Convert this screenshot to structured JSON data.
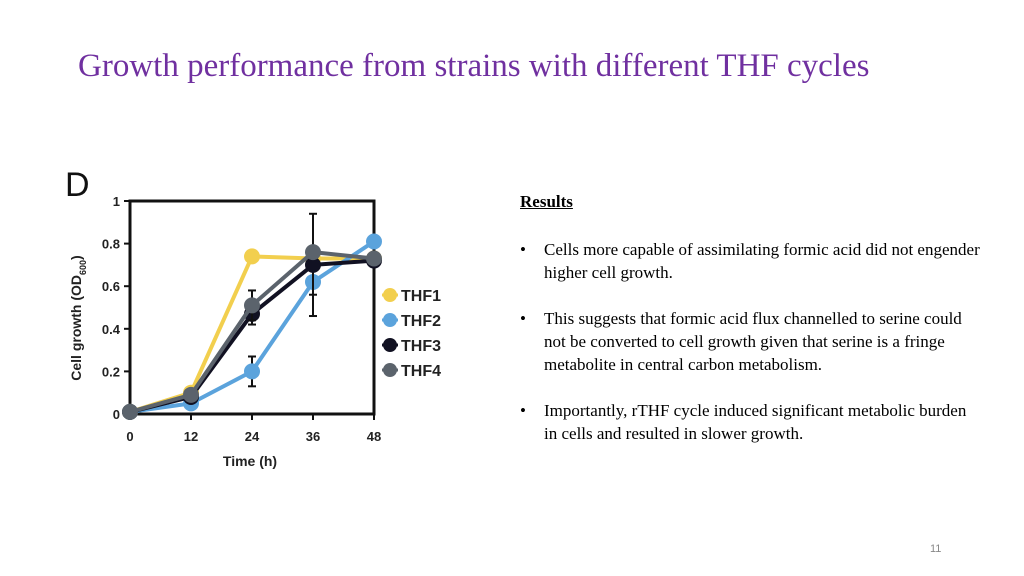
{
  "slide": {
    "title": "Growth performance from strains with different THF cycles",
    "page_number": "11"
  },
  "results": {
    "heading": "Results",
    "bullets": [
      "Cells more capable of assimilating formic acid did not engender higher cell growth.",
      "This suggests that formic acid flux channelled to serine could not be converted to cell growth given that serine is a fringe metabolite in central carbon metabolism.",
      "Importantly, rTHF cycle induced significant metabolic burden in cells and resulted in slower growth."
    ]
  },
  "chart_data": {
    "type": "line",
    "panel_label": "D",
    "xlabel": "Time (h)",
    "ylabel": "Cell growth (OD600)",
    "x": [
      0,
      12,
      24,
      36,
      48
    ],
    "x_tick_labels": [
      "0",
      "12",
      "24",
      "36",
      "48"
    ],
    "y_tick_labels": [
      "0",
      "0.2",
      "0.4",
      "0.6",
      "0.8",
      "1"
    ],
    "xlim": [
      0,
      48
    ],
    "ylim": [
      0,
      1
    ],
    "grid": false,
    "legend_position": "right",
    "series": [
      {
        "name": "THF1",
        "color": "#f2cf4e",
        "values": [
          0.01,
          0.1,
          0.74,
          0.73,
          0.73
        ],
        "errors": [
          0,
          0,
          0,
          0,
          0
        ]
      },
      {
        "name": "THF2",
        "color": "#5ba3dc",
        "values": [
          0.01,
          0.05,
          0.2,
          0.62,
          0.81
        ],
        "errors": [
          0,
          0,
          0.07,
          0.06,
          0
        ]
      },
      {
        "name": "THF3",
        "color": "#111122",
        "values": [
          0.01,
          0.08,
          0.47,
          0.7,
          0.72
        ],
        "errors": [
          0,
          0,
          0.05,
          0.24,
          0
        ]
      },
      {
        "name": "THF4",
        "color": "#5b636c",
        "values": [
          0.01,
          0.09,
          0.51,
          0.76,
          0.73
        ],
        "errors": [
          0,
          0,
          0.07,
          0,
          0
        ]
      }
    ]
  }
}
